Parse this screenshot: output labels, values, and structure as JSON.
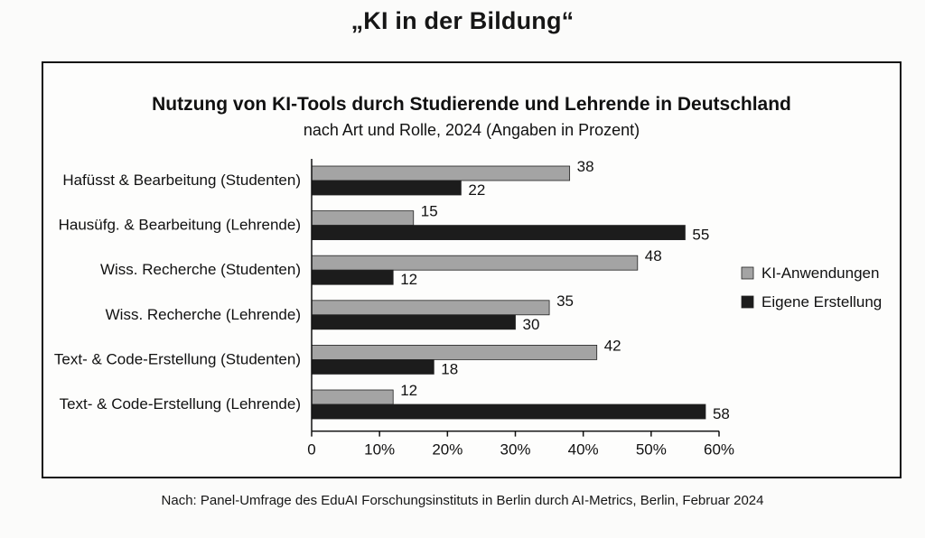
{
  "headline": "„KI in der Bildung“",
  "source": "Nach: Panel-Umfrage des EduAI Forschungsinstituts in Berlin durch AI-Metrics, Berlin, Februar 2024",
  "colors": {
    "ki_anwendungen": "#a4a4a4",
    "eigene_erstellung": "#1c1c1c"
  },
  "chart_data": {
    "type": "bar",
    "orientation": "horizontal",
    "title": "Nutzung von KI-Tools durch Studierende und Lehrende in Deutschland",
    "subtitle": "nach Art und Rolle, 2024 (Angaben in Prozent)",
    "categories": [
      "Hafüsst & Bearbeitung (Studenten)",
      "Hausüfg. & Bearbeitung (Lehrende)",
      "Wiss. Recherche (Studenten)",
      "Wiss. Recherche (Lehrende)",
      "Text- & Code-Erstellung (Studenten)",
      "Text- & Code-Erstellung (Lehrende)"
    ],
    "series": [
      {
        "name": "KI-Anwendungen",
        "values": [
          38,
          15,
          48,
          35,
          42,
          12
        ]
      },
      {
        "name": "Eigene Erstellung",
        "values": [
          22,
          55,
          12,
          30,
          18,
          58
        ]
      }
    ],
    "xlim": [
      0,
      60
    ],
    "xticks": [
      "0",
      "10%",
      "20%",
      "30%",
      "40%",
      "50%",
      "60%"
    ],
    "xlabel": "",
    "ylabel": "",
    "grid": false,
    "legend_position": "right"
  }
}
